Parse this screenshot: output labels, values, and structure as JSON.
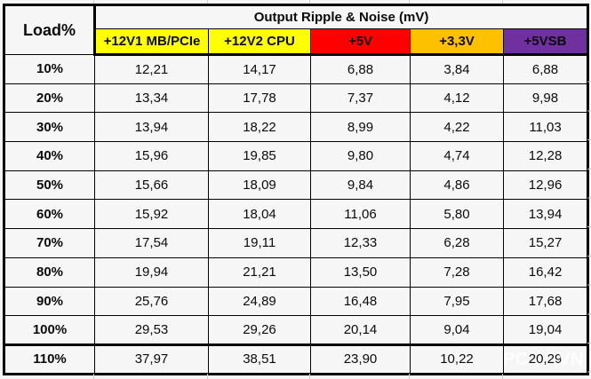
{
  "chart_data": {
    "type": "table",
    "title": "Output Ripple & Noise (mV)",
    "corner_label": "Load%",
    "columns": [
      {
        "label": "+12V1 MB/PCIe",
        "color": "#FFFF00"
      },
      {
        "label": "+12V2 CPU",
        "color": "#FFFF00"
      },
      {
        "label": "+5V",
        "color": "#FF0000"
      },
      {
        "label": "+3,3V",
        "color": "#FFC000"
      },
      {
        "label": "+5VSB",
        "color": "#7030A0"
      }
    ],
    "rows": [
      {
        "load": "10%",
        "values": [
          "12,21",
          "14,17",
          "6,88",
          "3,84",
          "6,88"
        ]
      },
      {
        "load": "20%",
        "values": [
          "13,34",
          "17,78",
          "7,37",
          "4,12",
          "9,98"
        ]
      },
      {
        "load": "30%",
        "values": [
          "13,94",
          "18,22",
          "8,99",
          "4,22",
          "11,03"
        ]
      },
      {
        "load": "40%",
        "values": [
          "15,96",
          "19,85",
          "9,80",
          "4,74",
          "12,28"
        ]
      },
      {
        "load": "50%",
        "values": [
          "15,66",
          "18,09",
          "9,84",
          "4,86",
          "12,96"
        ]
      },
      {
        "load": "60%",
        "values": [
          "15,92",
          "18,04",
          "11,06",
          "5,80",
          "13,94"
        ]
      },
      {
        "load": "70%",
        "values": [
          "17,54",
          "19,11",
          "12,33",
          "6,28",
          "15,27"
        ]
      },
      {
        "load": "80%",
        "values": [
          "19,94",
          "21,21",
          "13,50",
          "7,28",
          "16,42"
        ]
      },
      {
        "load": "90%",
        "values": [
          "25,76",
          "24,89",
          "16,48",
          "7,95",
          "17,68"
        ]
      },
      {
        "load": "100%",
        "values": [
          "29,53",
          "29,26",
          "20,14",
          "9,04",
          "19,04"
        ]
      },
      {
        "load": "110%",
        "values": [
          "37,97",
          "38,51",
          "23,90",
          "10,22",
          "20,29"
        ]
      }
    ]
  },
  "watermark": {
    "prefix": "PC",
    "suffix": ".VN"
  },
  "colors": {
    "header_yellow": "#FFFF00",
    "header_red": "#FF0000",
    "header_orange": "#FFC000",
    "header_purple": "#7030A0",
    "border": "#000000",
    "background": "#f5f6f5"
  }
}
